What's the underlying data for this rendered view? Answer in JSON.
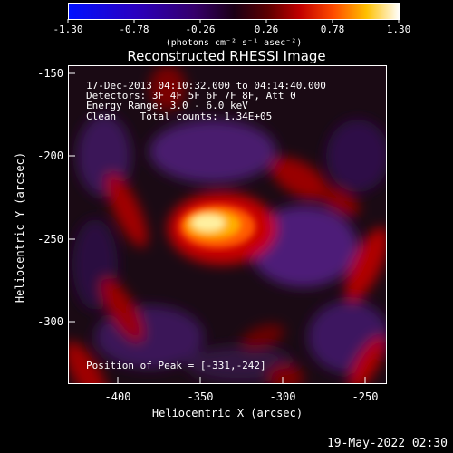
{
  "colorbar": {
    "ticks": [
      "-1.30",
      "-0.78",
      "-0.26",
      "0.26",
      "0.78",
      "1.30"
    ],
    "label": "(photons cm⁻² s⁻¹ asec⁻²)"
  },
  "title": "Reconstructed RHESSI Image",
  "info": {
    "time": "17-Dec-2013 04:10:32.000 to 04:14:40.000",
    "detectors": "Detectors: 3F 4F 5F 6F 7F 8F, Att 0",
    "energy": "Energy Range: 3.0 - 6.0 keV",
    "clean": "Clean    Total counts: 1.34E+05",
    "peak": "Position of Peak = [-331,-242]"
  },
  "axes": {
    "xlabel": "Heliocentric X (arcsec)",
    "ylabel": "Heliocentric Y (arcsec)",
    "xticks": [
      "-400",
      "-350",
      "-300",
      "-250"
    ],
    "yticks": [
      "-150",
      "-200",
      "-250",
      "-300"
    ]
  },
  "footer": {
    "timestamp": "19-May-2022 02:30"
  },
  "colors": {
    "background": "#000000",
    "frame": "#ffffff"
  }
}
